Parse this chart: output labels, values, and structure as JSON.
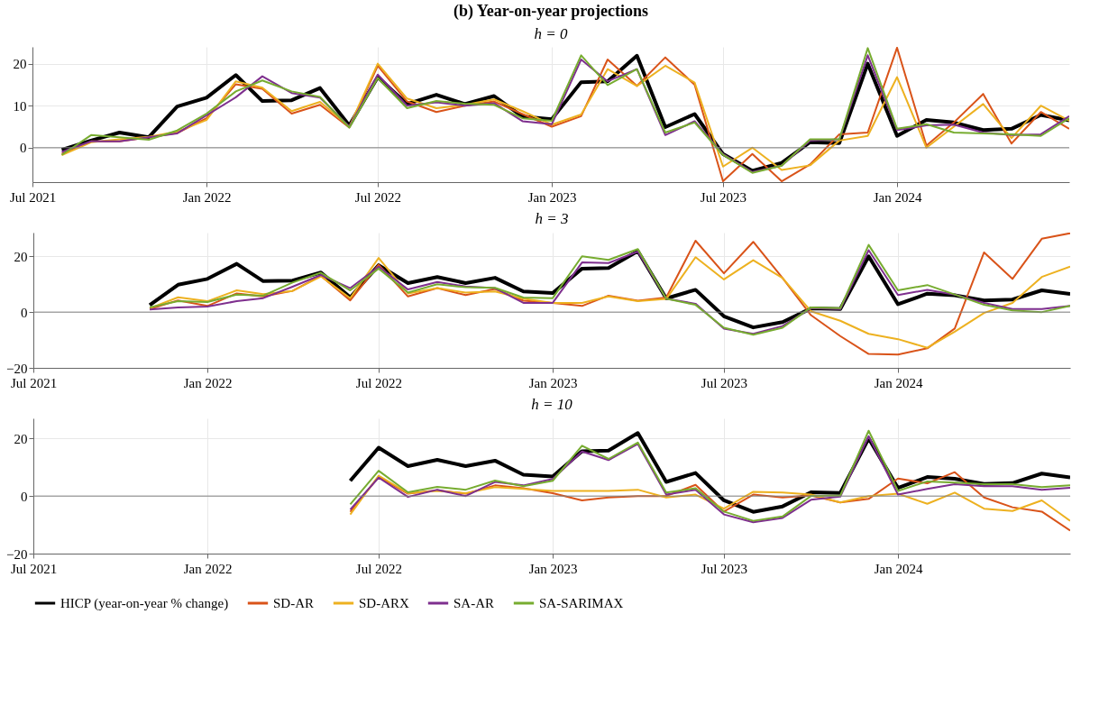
{
  "chart_data": [
    {
      "type": "line",
      "title": "(b) Year-on-year projections",
      "subtitle": "h = 0",
      "grid": true,
      "x": [
        "2021-08",
        "2021-09",
        "2021-10",
        "2021-11",
        "2021-12",
        "2022-01",
        "2022-02",
        "2022-03",
        "2022-04",
        "2022-05",
        "2022-06",
        "2022-07",
        "2022-08",
        "2022-09",
        "2022-10",
        "2022-11",
        "2022-12",
        "2023-01",
        "2023-02",
        "2023-03",
        "2023-04",
        "2023-05",
        "2023-06",
        "2023-07",
        "2023-08",
        "2023-09",
        "2023-10",
        "2023-11",
        "2023-12",
        "2024-01",
        "2024-02",
        "2024-03",
        "2024-04",
        "2024-05",
        "2024-06",
        "2024-07"
      ],
      "xlim": [
        "2021-07",
        "2024-07"
      ],
      "xticks": [
        {
          "value": "2021-07",
          "label": "Jul 2021"
        },
        {
          "value": "2022-01",
          "label": "Jan 2022"
        },
        {
          "value": "2022-07",
          "label": "Jul 2022"
        },
        {
          "value": "2023-01",
          "label": "Jan 2023"
        },
        {
          "value": "2023-07",
          "label": "Jul 2023"
        },
        {
          "value": "2024-01",
          "label": "Jan 2024"
        }
      ],
      "ylim": [
        -8.2,
        24
      ],
      "yticks": [
        0,
        10,
        20
      ],
      "ref_lines": [
        {
          "axis": "y",
          "value": 0,
          "color": "#808080"
        }
      ],
      "series": [
        {
          "color": "#000000",
          "values": [
            -0.5,
            1.7,
            3.6,
            2.5,
            9.8,
            11.9,
            17.3,
            11.1,
            11.3,
            14.2,
            5.3,
            16.8,
            10.4,
            12.6,
            10.4,
            12.3,
            7.4,
            6.8,
            15.6,
            15.8,
            21.9,
            4.9,
            8,
            -1.5,
            -5.5,
            -3.6,
            1.3,
            1.1,
            20,
            2.8,
            6.6,
            6,
            4.2,
            4.5,
            7.8,
            6.5
          ]
        },
        {
          "color": "#d95319",
          "values": [
            -1.5,
            1.5,
            1.5,
            2.5,
            3.5,
            7,
            15.1,
            14,
            8.1,
            10.2,
            4.8,
            19.5,
            11,
            8.5,
            10,
            11,
            8,
            5,
            7.5,
            21,
            14.7,
            21.5,
            15,
            -8,
            -1.5,
            -8,
            -4,
            3.2,
            3.6,
            23.8,
            0.5,
            6,
            12.8,
            1,
            8.5,
            4.5
          ]
        },
        {
          "color": "#edb120",
          "values": [
            -1.8,
            1.3,
            2,
            2.6,
            3.8,
            6.6,
            15.8,
            14.3,
            8.7,
            10.9,
            5,
            20,
            11.7,
            9.4,
            10.2,
            11.5,
            8.7,
            5.5,
            7.9,
            18.7,
            14.7,
            19.5,
            15.5,
            -4.5,
            0,
            -5.3,
            -4.2,
            1.7,
            2.8,
            16.8,
            0,
            5,
            10.4,
            2.3,
            10,
            6.4
          ]
        },
        {
          "color": "#7e2f8e",
          "values": [
            -1,
            1.5,
            1.5,
            2.5,
            3.4,
            7.7,
            12,
            17,
            13,
            11.9,
            5,
            17.4,
            10,
            10.8,
            10,
            10.6,
            6.3,
            5.6,
            21,
            15.8,
            18.7,
            3,
            6.3,
            -1.5,
            -5.8,
            -4.3,
            1.7,
            2,
            22,
            4.2,
            5.3,
            5.5,
            3.6,
            3,
            3.2,
            7.5
          ]
        },
        {
          "color": "#77ac30",
          "values": [
            -1.7,
            3,
            2.5,
            1.9,
            4.1,
            8.1,
            13.4,
            16,
            13.4,
            12.1,
            4.8,
            16.6,
            9.4,
            11.1,
            10.5,
            10.2,
            7,
            6.4,
            22,
            14.9,
            18.7,
            3.6,
            6,
            -1.7,
            -6,
            -4.3,
            2,
            2,
            23.7,
            4.5,
            5.6,
            3.6,
            3.4,
            3.2,
            2.8,
            7
          ]
        }
      ]
    },
    {
      "type": "line",
      "title": "h = 3",
      "grid": true,
      "x": [
        "2021-11",
        "2021-12",
        "2022-01",
        "2022-02",
        "2022-03",
        "2022-04",
        "2022-05",
        "2022-06",
        "2022-07",
        "2022-08",
        "2022-09",
        "2022-10",
        "2022-11",
        "2022-12",
        "2023-01",
        "2023-02",
        "2023-03",
        "2023-04",
        "2023-05",
        "2023-06",
        "2023-07",
        "2023-08",
        "2023-09",
        "2023-10",
        "2023-11",
        "2023-12",
        "2024-01",
        "2024-02",
        "2024-03",
        "2024-04",
        "2024-05",
        "2024-06",
        "2024-07"
      ],
      "xlim": [
        "2021-07",
        "2024-07"
      ],
      "xticks": [
        {
          "value": "2021-07",
          "label": "Jul 2021"
        },
        {
          "value": "2022-01",
          "label": "Jan 2022"
        },
        {
          "value": "2022-07",
          "label": "Jul 2022"
        },
        {
          "value": "2023-01",
          "label": "Jan 2023"
        },
        {
          "value": "2023-07",
          "label": "Jul 2023"
        },
        {
          "value": "2024-01",
          "label": "Jan 2024"
        }
      ],
      "ylim": [
        -20,
        28.5
      ],
      "yticks": [
        -20,
        0,
        20
      ],
      "ref_lines": [
        {
          "axis": "y",
          "value": 0,
          "color": "#808080"
        }
      ],
      "series": [
        {
          "color": "#000000",
          "values": [
            2.5,
            9.8,
            11.9,
            17.3,
            11.1,
            11.3,
            14.2,
            5.3,
            16.8,
            10.4,
            12.6,
            10.4,
            12.3,
            7.4,
            6.8,
            15.6,
            15.8,
            21.9,
            4.9,
            8,
            -1.5,
            -5.5,
            -3.6,
            1.3,
            1.1,
            20,
            2.8,
            6.6,
            6,
            4.2,
            4.5,
            7.8,
            6.5
          ]
        },
        {
          "color": "#d95319",
          "values": [
            1.1,
            4.2,
            2.2,
            6.7,
            5.6,
            7.6,
            13,
            4.2,
            17,
            5.6,
            8.6,
            6.1,
            8.3,
            4.1,
            3.3,
            2.2,
            5.9,
            4.1,
            5.2,
            25.6,
            13.9,
            25.2,
            12.2,
            -1.1,
            -8.6,
            -15,
            -15.2,
            -13,
            -5.9,
            21.4,
            11.9,
            26.3,
            28.3
          ]
        },
        {
          "color": "#edb120",
          "values": [
            1.4,
            5.3,
            3.9,
            7.8,
            6.4,
            7.6,
            12.8,
            5,
            19.4,
            6.7,
            8.6,
            7,
            7.4,
            4.8,
            3.3,
            3.3,
            5.6,
            3.9,
            4.7,
            19.7,
            11.7,
            18.6,
            12.2,
            0.3,
            -3.1,
            -7.8,
            -9.7,
            -12.8,
            -7,
            -0.3,
            3.3,
            12.6,
            16.3
          ]
        },
        {
          "color": "#7e2f8e",
          "values": [
            0.9,
            1.7,
            2,
            3.9,
            5,
            9.1,
            13.3,
            8.6,
            16.3,
            8.1,
            10.8,
            9.2,
            8.6,
            3.3,
            3.3,
            17.8,
            17.6,
            21.7,
            4.8,
            3,
            -5.9,
            -7.8,
            -5,
            1.4,
            1.1,
            22.2,
            6.1,
            8,
            6.3,
            3.3,
            1.1,
            1.1,
            2.2
          ]
        },
        {
          "color": "#77ac30",
          "values": [
            1.7,
            3.9,
            3.6,
            6.3,
            5.9,
            10.6,
            14.1,
            7.8,
            15.6,
            7,
            10,
            8.9,
            8.7,
            5.2,
            5,
            20,
            18.7,
            22.6,
            4.8,
            2.6,
            -5.6,
            -8.1,
            -5.6,
            1.7,
            1.4,
            24.1,
            7.8,
            9.7,
            6.3,
            2.6,
            0.6,
            0,
            2.2
          ]
        }
      ]
    },
    {
      "type": "line",
      "title": "h = 10",
      "grid": true,
      "legend": "bottom",
      "x": [
        "2022-06",
        "2022-07",
        "2022-08",
        "2022-09",
        "2022-10",
        "2022-11",
        "2022-12",
        "2023-01",
        "2023-02",
        "2023-03",
        "2023-04",
        "2023-05",
        "2023-06",
        "2023-07",
        "2023-08",
        "2023-09",
        "2023-10",
        "2023-11",
        "2023-12",
        "2024-01",
        "2024-02",
        "2024-03",
        "2024-04",
        "2024-05",
        "2024-06",
        "2024-07"
      ],
      "xlim": [
        "2021-07",
        "2024-07"
      ],
      "xticks": [
        {
          "value": "2021-07",
          "label": "Jul 2021"
        },
        {
          "value": "2022-01",
          "label": "Jan 2022"
        },
        {
          "value": "2022-07",
          "label": "Jul 2022"
        },
        {
          "value": "2023-01",
          "label": "Jan 2023"
        },
        {
          "value": "2023-07",
          "label": "Jul 2023"
        },
        {
          "value": "2024-01",
          "label": "Jan 2024"
        }
      ],
      "ylim": [
        -20,
        27
      ],
      "yticks": [
        -20,
        0,
        20
      ],
      "ref_lines": [
        {
          "axis": "y",
          "value": 0,
          "color": "#808080"
        }
      ],
      "series": [
        {
          "name": "HICP (year-on-year % change)",
          "color": "#000000",
          "values": [
            5.3,
            16.8,
            10.4,
            12.6,
            10.4,
            12.3,
            7.4,
            6.8,
            15.6,
            15.8,
            21.9,
            4.9,
            8,
            -1.5,
            -5.5,
            -3.6,
            1.3,
            1.1,
            20,
            2.8,
            6.6,
            6,
            4.2,
            4.5,
            7.8,
            6.5
          ]
        },
        {
          "name": "SD-AR",
          "color": "#d95319",
          "values": [
            -5.5,
            6.7,
            0.8,
            2,
            0.8,
            3.7,
            2.7,
            1,
            -1.5,
            -0.5,
            0,
            0,
            3.9,
            -5.4,
            0.5,
            -0.5,
            0.2,
            -2.2,
            -1,
            6.1,
            4.4,
            8.3,
            -0.5,
            -3.9,
            -5.4,
            -12
          ]
        },
        {
          "name": "SD-ARX",
          "color": "#edb120",
          "values": [
            -6.4,
            7.1,
            1,
            1.8,
            1,
            3.1,
            2.5,
            1.8,
            1.8,
            1.8,
            2.2,
            -0.5,
            0.5,
            -4.4,
            1.5,
            1.2,
            0.5,
            -2.2,
            0,
            0.8,
            -2.7,
            1.2,
            -4.4,
            -5.2,
            -1.5,
            -8.6
          ]
        },
        {
          "name": "SA-AR",
          "color": "#7e2f8e",
          "values": [
            -4.7,
            6.4,
            -0.3,
            2.2,
            0,
            4.9,
            3.7,
            5.9,
            15.5,
            12.5,
            18.1,
            0.5,
            2.2,
            -6.4,
            -9.1,
            -7.6,
            -1.3,
            -0.2,
            20.8,
            0.5,
            2.5,
            4.1,
            3.4,
            3.4,
            2.2,
            2.9
          ]
        },
        {
          "name": "SA-SARIMAX",
          "color": "#77ac30",
          "values": [
            -2.9,
            8.8,
            1.3,
            3.2,
            2.2,
            5.4,
            3.4,
            5.3,
            17.5,
            12.9,
            18.6,
            1.2,
            2.7,
            -5.4,
            -8.6,
            -7.1,
            0,
            0.2,
            22.7,
            1.8,
            5.1,
            4.7,
            4.1,
            4.1,
            3.1,
            3.7
          ]
        }
      ]
    }
  ]
}
